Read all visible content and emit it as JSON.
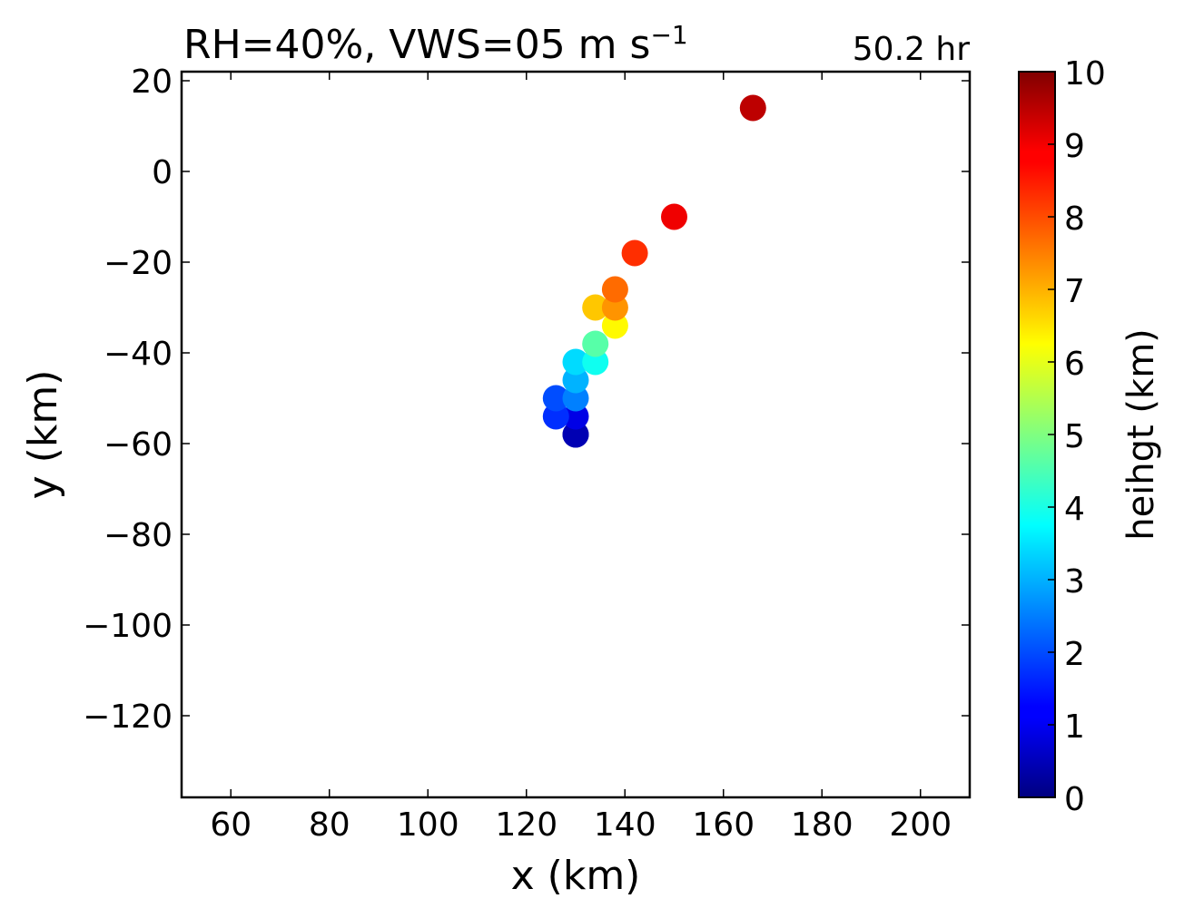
{
  "chart_data": {
    "type": "scatter",
    "title": "RH=40%, VWS=05 m s",
    "title_superscript": "−1",
    "time_label": "50.2 hr",
    "time_label_color": "#0000ff",
    "xlabel": "x (km)",
    "ylabel": "y (km)",
    "xlim": [
      50,
      210
    ],
    "ylim": [
      -138,
      22
    ],
    "xticks": [
      60,
      80,
      100,
      120,
      140,
      160,
      180,
      200
    ],
    "xtick_labels": [
      "60",
      "80",
      "100",
      "120",
      "140",
      "160",
      "180",
      "200"
    ],
    "yticks": [
      20,
      0,
      -20,
      -40,
      -60,
      -80,
      -100,
      -120
    ],
    "ytick_labels": [
      "20",
      "0",
      "−20",
      "−40",
      "−60",
      "−80",
      "−100",
      "−120"
    ],
    "grid": false,
    "colormap": "jet",
    "colorbar": {
      "label": "heihgt (km)",
      "range": [
        0,
        10
      ],
      "ticks": [
        0,
        1,
        2,
        3,
        4,
        5,
        6,
        7,
        8,
        9,
        10
      ],
      "tick_labels": [
        "0",
        "1",
        "2",
        "3",
        "4",
        "5",
        "6",
        "7",
        "8",
        "9",
        "10"
      ]
    },
    "points": [
      {
        "x": 130,
        "y": -58,
        "height": 0.5
      },
      {
        "x": 130,
        "y": -58,
        "height": 0.5
      },
      {
        "x": 130,
        "y": -54,
        "height": 1.0
      },
      {
        "x": 126,
        "y": -54,
        "height": 1.7
      },
      {
        "x": 126,
        "y": -50,
        "height": 2.0
      },
      {
        "x": 130,
        "y": -50,
        "height": 2.5
      },
      {
        "x": 130,
        "y": -46,
        "height": 3.0
      },
      {
        "x": 130,
        "y": -42,
        "height": 3.4
      },
      {
        "x": 134,
        "y": -42,
        "height": 3.9
      },
      {
        "x": 134,
        "y": -38,
        "height": 4.6
      },
      {
        "x": 138,
        "y": -34,
        "height": 6.3
      },
      {
        "x": 134,
        "y": -30,
        "height": 6.8
      },
      {
        "x": 138,
        "y": -30,
        "height": 7.3
      },
      {
        "x": 138,
        "y": -26,
        "height": 7.7
      },
      {
        "x": 142,
        "y": -18,
        "height": 8.3
      },
      {
        "x": 150,
        "y": -10,
        "height": 8.9
      },
      {
        "x": 166,
        "y": 14,
        "height": 9.4
      }
    ]
  }
}
